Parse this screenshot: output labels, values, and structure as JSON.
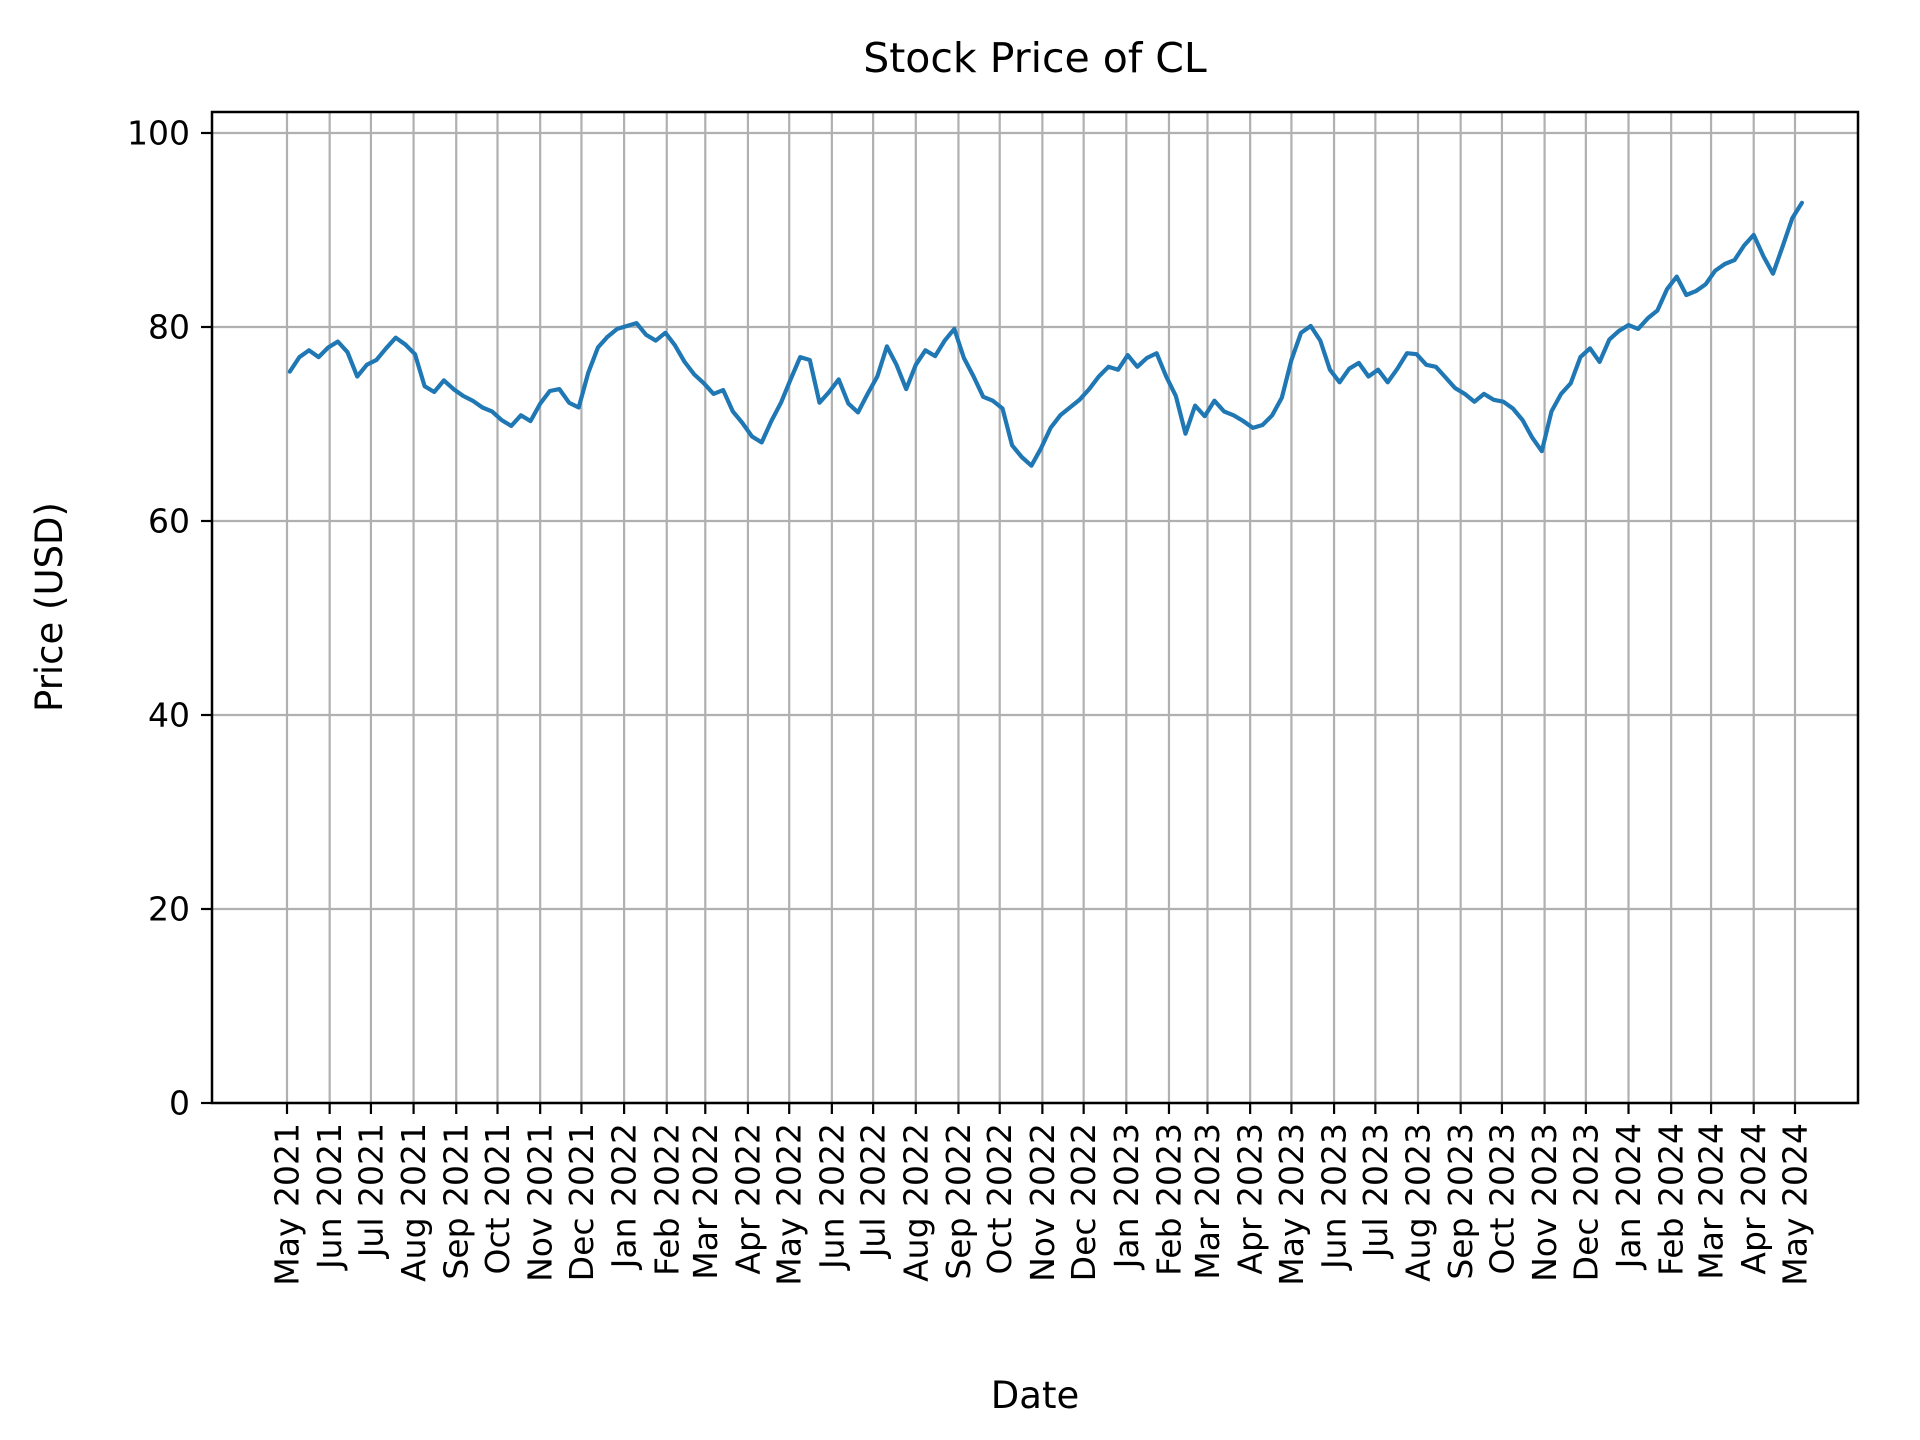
{
  "figure": {
    "title": "Stock Price of CL",
    "xlabel": "Date",
    "ylabel": "Price (USD)"
  },
  "chart_data": {
    "type": "line",
    "title": "Stock Price of CL",
    "xlabel": "Date",
    "ylabel": "Price (USD)",
    "series_name": "CL",
    "line_color": "#1f77b4",
    "grid_color": "#b0b0b0",
    "grid": true,
    "legend": false,
    "ylim": [
      0,
      100
    ],
    "yticks": [
      0,
      20,
      40,
      60,
      80,
      100
    ],
    "x_tick_labels": [
      "May 2021",
      "Jun 2021",
      "Jul 2021",
      "Aug 2021",
      "Sep 2021",
      "Oct 2021",
      "Nov 2021",
      "Dec 2021",
      "Jan 2022",
      "Feb 2022",
      "Mar 2022",
      "Apr 2022",
      "May 2022",
      "Jun 2022",
      "Jul 2022",
      "Aug 2022",
      "Sep 2022",
      "Oct 2022",
      "Nov 2022",
      "Dec 2022",
      "Jan 2023",
      "Feb 2023",
      "Mar 2023",
      "Apr 2023",
      "May 2023",
      "Jun 2023",
      "Jul 2023",
      "Aug 2023",
      "Sep 2023",
      "Oct 2023",
      "Nov 2023",
      "Dec 2023",
      "Jan 2024",
      "Feb 2024",
      "Mar 2024",
      "Apr 2024",
      "May 2024"
    ],
    "start_date": "2021-05-03",
    "interval_days": 7,
    "prices": [
      75.4,
      76.9,
      77.6,
      76.9,
      77.9,
      78.5,
      77.4,
      74.9,
      76.1,
      76.6,
      77.8,
      78.9,
      78.2,
      77.2,
      73.9,
      73.3,
      74.5,
      73.6,
      72.9,
      72.4,
      71.7,
      71.3,
      70.4,
      69.8,
      70.9,
      70.3,
      72.1,
      73.4,
      73.6,
      72.2,
      71.7,
      75.3,
      77.9,
      79.0,
      79.8,
      80.1,
      80.4,
      79.2,
      78.6,
      79.4,
      78.1,
      76.4,
      75.1,
      74.2,
      73.1,
      73.5,
      71.3,
      70.1,
      68.7,
      68.1,
      70.3,
      72.2,
      74.6,
      76.9,
      76.6,
      72.2,
      73.3,
      74.6,
      72.1,
      71.2,
      73.1,
      74.9,
      78.0,
      76.1,
      73.6,
      76.1,
      77.6,
      77.0,
      78.6,
      79.8,
      76.8,
      74.9,
      72.8,
      72.4,
      71.6,
      67.8,
      66.6,
      65.7,
      67.5,
      69.6,
      70.9,
      71.7,
      72.5,
      73.6,
      74.9,
      75.9,
      75.6,
      77.1,
      75.9,
      76.8,
      77.3,
      74.9,
      72.9,
      69.0,
      71.9,
      70.8,
      72.4,
      71.3,
      70.9,
      70.3,
      69.6,
      69.9,
      70.9,
      72.7,
      76.6,
      79.4,
      80.1,
      78.6,
      75.6,
      74.3,
      75.7,
      76.3,
      74.9,
      75.6,
      74.3,
      75.7,
      77.3,
      77.2,
      76.1,
      75.9,
      74.8,
      73.7,
      73.1,
      72.3,
      73.1,
      72.5,
      72.3,
      71.6,
      70.4,
      68.6,
      67.2,
      71.3,
      73.1,
      74.2,
      76.9,
      77.8,
      76.4,
      78.7,
      79.6,
      80.2,
      79.8,
      80.9,
      81.7,
      83.9,
      85.2,
      83.3,
      83.7,
      84.4,
      85.8,
      86.5,
      86.9,
      88.4,
      89.5,
      87.3,
      85.5,
      88.3,
      91.2,
      92.8
    ]
  }
}
